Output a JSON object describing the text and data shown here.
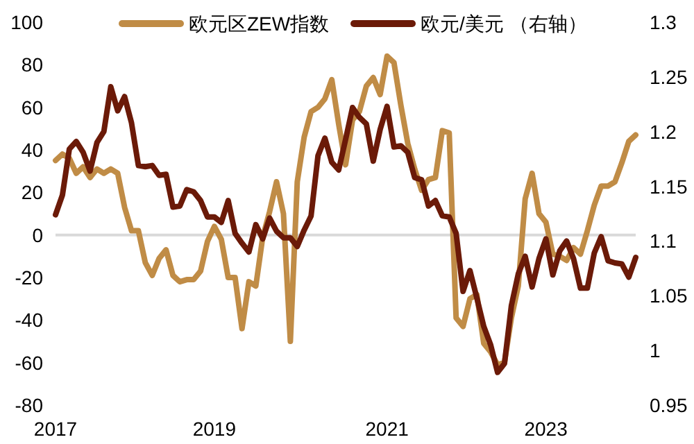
{
  "chart_data": {
    "type": "line",
    "x": [
      "2017-05",
      "2017-06",
      "2017-07",
      "2017-08",
      "2017-09",
      "2017-10",
      "2017-11",
      "2017-12",
      "2018-01",
      "2018-02",
      "2018-03",
      "2018-04",
      "2018-05",
      "2018-06",
      "2018-07",
      "2018-08",
      "2018-09",
      "2018-10",
      "2018-11",
      "2018-12",
      "2019-01",
      "2019-02",
      "2019-03",
      "2019-04",
      "2019-05",
      "2019-06",
      "2019-07",
      "2019-08",
      "2019-09",
      "2019-10",
      "2019-11",
      "2019-12",
      "2020-01",
      "2020-02",
      "2020-03",
      "2020-04",
      "2020-05",
      "2020-06",
      "2020-07",
      "2020-08",
      "2020-09",
      "2020-10",
      "2020-11",
      "2020-12",
      "2021-01",
      "2021-02",
      "2021-03",
      "2021-04",
      "2021-05",
      "2021-06",
      "2021-07",
      "2021-08",
      "2021-09",
      "2021-10",
      "2021-11",
      "2021-12",
      "2022-01",
      "2022-02",
      "2022-03",
      "2022-04",
      "2022-05",
      "2022-06",
      "2022-07",
      "2022-08",
      "2022-09",
      "2022-10",
      "2022-11",
      "2022-12",
      "2023-01",
      "2023-02",
      "2023-03",
      "2023-04",
      "2023-05",
      "2023-06",
      "2023-07",
      "2023-08",
      "2023-09",
      "2023-10",
      "2023-11",
      "2023-12",
      "2024-01",
      "2024-02",
      "2024-03",
      "2024-04",
      "2024-05"
    ],
    "series": [
      {
        "name": "欧元区ZEW指数",
        "color": "#c08c46",
        "values": [
          35,
          38,
          36,
          29,
          32,
          27,
          31,
          29,
          31,
          29,
          13,
          2,
          2,
          -13,
          -19,
          -11,
          -7,
          -19,
          -22,
          -21,
          -21,
          -17,
          -3,
          4,
          -2,
          -20,
          -20,
          -44,
          -22,
          -24,
          -1,
          11,
          25,
          10,
          -50,
          25,
          46,
          58,
          60,
          64,
          73,
          52,
          33,
          54,
          58,
          70,
          74,
          66,
          84,
          81,
          61,
          43,
          31,
          21,
          26,
          27,
          49,
          48,
          -39,
          -43,
          -30,
          -28,
          -51,
          -55,
          -61,
          -60,
          -39,
          -24,
          17,
          29,
          10,
          6,
          -9,
          -10,
          -12,
          -6,
          -9,
          2,
          14,
          23,
          23,
          25,
          34,
          44,
          47
        ]
      },
      {
        "name": "欧元/美元 （右轴）",
        "color": "#6b1a08",
        "axis": "y2",
        "values": [
          1.124,
          1.142,
          1.184,
          1.191,
          1.181,
          1.164,
          1.19,
          1.2,
          1.241,
          1.219,
          1.232,
          1.208,
          1.169,
          1.168,
          1.169,
          1.16,
          1.161,
          1.131,
          1.132,
          1.147,
          1.145,
          1.137,
          1.122,
          1.122,
          1.117,
          1.137,
          1.107,
          1.098,
          1.09,
          1.115,
          1.102,
          1.121,
          1.109,
          1.103,
          1.103,
          1.095,
          1.11,
          1.123,
          1.178,
          1.194,
          1.172,
          1.165,
          1.193,
          1.222,
          1.213,
          1.207,
          1.173,
          1.202,
          1.223,
          1.186,
          1.187,
          1.181,
          1.158,
          1.156,
          1.132,
          1.137,
          1.123,
          1.122,
          1.107,
          1.054,
          1.073,
          1.048,
          1.022,
          1.005,
          0.98,
          0.988,
          1.041,
          1.07,
          1.086,
          1.058,
          1.084,
          1.102,
          1.069,
          1.091,
          1.1,
          1.084,
          1.057,
          1.057,
          1.089,
          1.104,
          1.082,
          1.08,
          1.079,
          1.067,
          1.085
        ]
      }
    ],
    "xlim": [
      "2017-05",
      "2024-05"
    ],
    "xticks": [
      {
        "value": "2017-05",
        "label": "2017"
      },
      {
        "value": "2019-04",
        "label": "2019"
      },
      {
        "value": "2021-05",
        "label": "2021"
      },
      {
        "value": "2023-04",
        "label": "2023"
      }
    ],
    "ylim": [
      -80,
      100
    ],
    "yticks": [
      -80,
      -60,
      -40,
      -20,
      0,
      20,
      40,
      60,
      80,
      100
    ],
    "y2lim": [
      0.95,
      1.3
    ],
    "y2ticks": [
      0.95,
      1,
      1.05,
      1.1,
      1.15,
      1.2,
      1.25,
      1.3
    ],
    "ref_lines": [
      {
        "axis": "y",
        "value": 0,
        "color": "#d9d9d9"
      }
    ],
    "legend": "top",
    "line_style": "solid",
    "marker": "none",
    "grid": false
  }
}
